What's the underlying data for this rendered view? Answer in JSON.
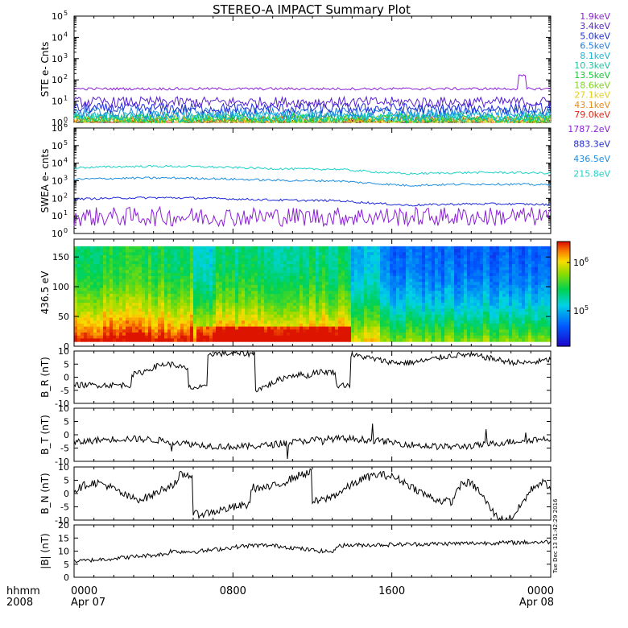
{
  "title": "STEREO-A IMPACT Summary Plot",
  "footer": {
    "hhmm": "hhmm",
    "year": "2008",
    "xticks": [
      {
        "time": "0000",
        "date": "Apr 07",
        "hour": 0
      },
      {
        "time": "0800",
        "date": "",
        "hour": 8
      },
      {
        "time": "1600",
        "date": "",
        "hour": 16
      },
      {
        "time": "0000",
        "date": "Apr 08",
        "hour": 24
      }
    ],
    "timestamp": "Tue Dec 13 01:42:29 2016"
  },
  "chart_data": [
    {
      "type": "line",
      "ylabel": "STE e- Cnts",
      "yscale": "log",
      "ylim_exp": [
        0,
        5
      ],
      "series": [
        {
          "name": "1.9keV",
          "color": "#8b1fd6",
          "level": 38
        },
        {
          "name": "3.4keV",
          "color": "#5a1fcf",
          "level": 9
        },
        {
          "name": "5.0keV",
          "color": "#1f2ad9",
          "level": 4.5
        },
        {
          "name": "6.5keV",
          "color": "#1f7fe0",
          "level": 2.8
        },
        {
          "name": "8.1keV",
          "color": "#17b7d8",
          "level": 2.0
        },
        {
          "name": "10.3keV",
          "color": "#12c8a0",
          "level": 1.7
        },
        {
          "name": "13.5keV",
          "color": "#12cc33",
          "level": 1.5
        },
        {
          "name": "18.6keV",
          "color": "#7fd61c",
          "level": 1.3
        },
        {
          "name": "27.1keV",
          "color": "#e0d11a",
          "level": 1.2
        },
        {
          "name": "43.1keV",
          "color": "#e88a14",
          "level": 1.1
        },
        {
          "name": "79.0keV",
          "color": "#e5220e",
          "level": 1.05
        }
      ]
    },
    {
      "type": "line",
      "ylabel": "SWEA e- cnts",
      "yscale": "log",
      "ylim_exp": [
        0,
        6
      ],
      "series": [
        {
          "name": "1787.2eV",
          "color": "#8b1fd6",
          "level": 9
        },
        {
          "name": "883.3eV",
          "color": "#1f2ad9",
          "level": 90
        },
        {
          "name": "436.5eV",
          "color": "#1f8fe0",
          "level": 1200
        },
        {
          "name": "215.8eV",
          "color": "#1fd1c8",
          "level": 5500
        }
      ]
    },
    {
      "type": "heatmap",
      "ylabel": "436.5 eV",
      "ylim": [
        0,
        180
      ],
      "yticks": [
        0,
        50,
        100,
        150
      ],
      "colorbar_labels": [
        "10^6",
        "10^5"
      ]
    },
    {
      "type": "line",
      "ylabel": "B_R (nT)",
      "ylim": [
        -10,
        10
      ],
      "yticks": [
        -10,
        -5,
        0,
        5,
        10
      ],
      "series": [
        {
          "color": "#000000"
        }
      ]
    },
    {
      "type": "line",
      "ylabel": "B_T (nT)",
      "ylim": [
        -10,
        10
      ],
      "yticks": [
        -10,
        -5,
        0,
        5,
        10
      ],
      "series": [
        {
          "color": "#000000"
        }
      ]
    },
    {
      "type": "line",
      "ylabel": "B_N (nT)",
      "ylim": [
        -10,
        10
      ],
      "yticks": [
        -10,
        -5,
        0,
        5,
        10
      ],
      "series": [
        {
          "color": "#000000"
        }
      ]
    },
    {
      "type": "line",
      "ylabel": "|B| (nT)",
      "ylim": [
        0,
        20
      ],
      "yticks": [
        0,
        5,
        10,
        15,
        20
      ],
      "series": [
        {
          "color": "#000000"
        }
      ]
    }
  ]
}
